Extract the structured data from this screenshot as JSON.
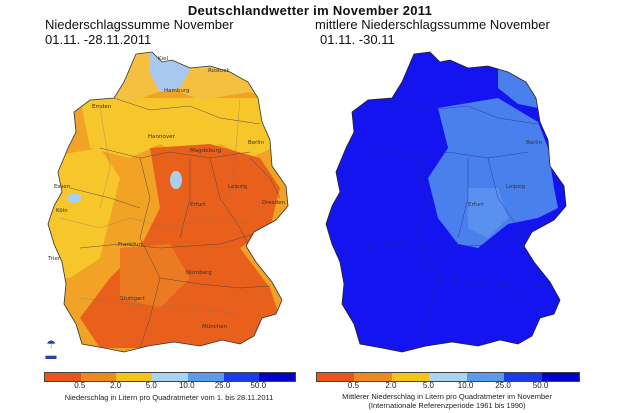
{
  "title": "Deutschlandwetter im November 2011",
  "left": {
    "title_line1": "Niederschlagssumme November",
    "title_line2": "01.11. -28.11.2011",
    "cities": [
      "Kiel",
      "Rostock",
      "Hamburg",
      "Emden",
      "Hannover",
      "Berlin",
      "Magdeburg",
      "Leipzig",
      "Dresden",
      "Essen",
      "Köln",
      "Erfurt",
      "Frankfurt",
      "Trier",
      "Nürnberg",
      "Stuttgart",
      "München"
    ],
    "legend_ticks": [
      "0.5",
      "2.0",
      "5.0",
      "10.0",
      "25.0",
      "50.0"
    ],
    "legend_colors": [
      "#e8561c",
      "#f08a1e",
      "#f5c41a",
      "#a8d4ef",
      "#5a9bef",
      "#1a3dea",
      "#0000c8"
    ],
    "caption_line1": "Niederschlag in Litern pro Quadratmeter vom 1. bis 28.11.2011"
  },
  "right": {
    "title_line1": "mittlere Niederschlagssumme November",
    "title_line2": "01.11. -30.11",
    "cities": [
      "Berlin",
      "Leipzig",
      "Erfurt"
    ],
    "legend_ticks": [
      "0.5",
      "2.0",
      "5.0",
      "10.0",
      "25.0",
      "50.0"
    ],
    "legend_colors": [
      "#e8561c",
      "#f08a1e",
      "#f5c41a",
      "#a8d4ef",
      "#5a9bef",
      "#1a3dea",
      "#0000c8"
    ],
    "caption_line1": "Mittlerer Niederschlag in Litern pro Quadratmeter im November",
    "caption_line2": "(Internationale Referenzperiode 1961 bis 1990)"
  },
  "colors": {
    "orange_dark": "#e06a1a",
    "orange": "#f09a20",
    "yellow": "#f7c62a",
    "light_blue": "#a8d0ee",
    "mid_blue": "#4a80ee",
    "deep_blue": "#1414f0"
  }
}
